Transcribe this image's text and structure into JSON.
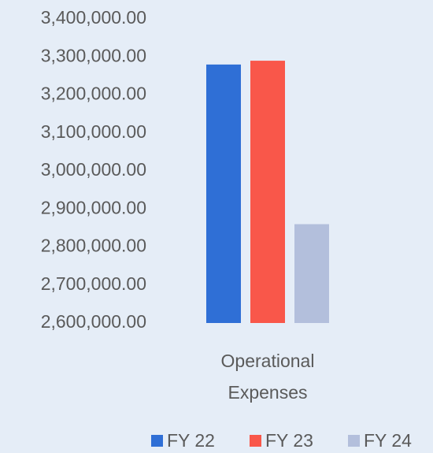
{
  "chart_data": {
    "type": "bar",
    "categories": [
      "Operational Expenses"
    ],
    "series": [
      {
        "name": "FY 22",
        "color": "#2f6fd6",
        "values": [
          3280000
        ]
      },
      {
        "name": "FY 23",
        "color": "#f9574a",
        "values": [
          3290000
        ]
      },
      {
        "name": "FY 24",
        "color": "#b3bfdc",
        "values": [
          2860000
        ]
      }
    ],
    "ylim": [
      2600000,
      3400000
    ],
    "yticks": [
      {
        "value": 2600000,
        "label": "2,600,000.00"
      },
      {
        "value": 2700000,
        "label": "2,700,000.00"
      },
      {
        "value": 2800000,
        "label": "2,800,000.00"
      },
      {
        "value": 2900000,
        "label": "2,900,000.00"
      },
      {
        "value": 3000000,
        "label": "3,000,000.00"
      },
      {
        "value": 3100000,
        "label": "3,100,000.00"
      },
      {
        "value": 3200000,
        "label": "3,200,000.00"
      },
      {
        "value": 3300000,
        "label": "3,300,000.00"
      },
      {
        "value": 3400000,
        "label": "3,400,000.00"
      }
    ],
    "grid": false,
    "legend": "bottom"
  }
}
